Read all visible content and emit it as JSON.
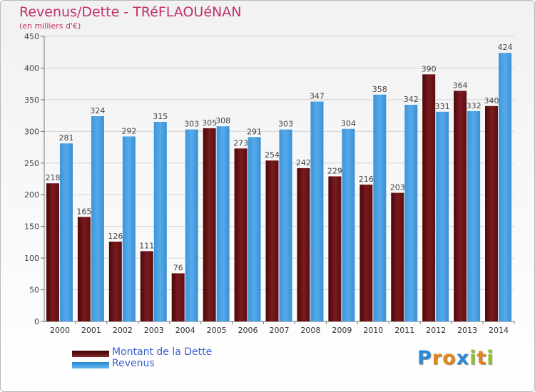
{
  "header": {
    "title": "Revenus/Dette - TRéFLAOUéNAN",
    "subtitle": "(en milliers d'€)"
  },
  "chart_data": {
    "type": "bar",
    "categories": [
      "2000",
      "2001",
      "2002",
      "2003",
      "2004",
      "2005",
      "2006",
      "2007",
      "2008",
      "2009",
      "2010",
      "2011",
      "2012",
      "2013",
      "2014"
    ],
    "series": [
      {
        "name": "Montant de la Dette",
        "color": "#7a1a1e",
        "values": [
          218,
          165,
          126,
          111,
          76,
          305,
          273,
          254,
          242,
          229,
          216,
          203,
          390,
          364,
          340
        ]
      },
      {
        "name": "Revenus",
        "color": "#4aa3e6",
        "values": [
          281,
          324,
          292,
          315,
          303,
          308,
          291,
          303,
          347,
          304,
          358,
          342,
          331,
          332,
          424
        ]
      }
    ],
    "ylim": [
      0,
      450
    ],
    "yticks": [
      0,
      50,
      100,
      150,
      200,
      250,
      300,
      350,
      400,
      450
    ],
    "grid": true,
    "legend_position": "bottom-left"
  },
  "legend": {
    "items": [
      {
        "label": "Montant de la Dette",
        "color": "#7a1a1e"
      },
      {
        "label": "Revenus",
        "color": "#4aa3e6"
      }
    ]
  },
  "logo": {
    "letters": [
      "P",
      "r",
      "o",
      "x",
      "i",
      "t",
      "i"
    ],
    "colors": [
      "#2a8ad6",
      "#e0851a",
      "#e0851a",
      "#2a8ad6",
      "#93c025",
      "#e0851a",
      "#93c025"
    ]
  }
}
